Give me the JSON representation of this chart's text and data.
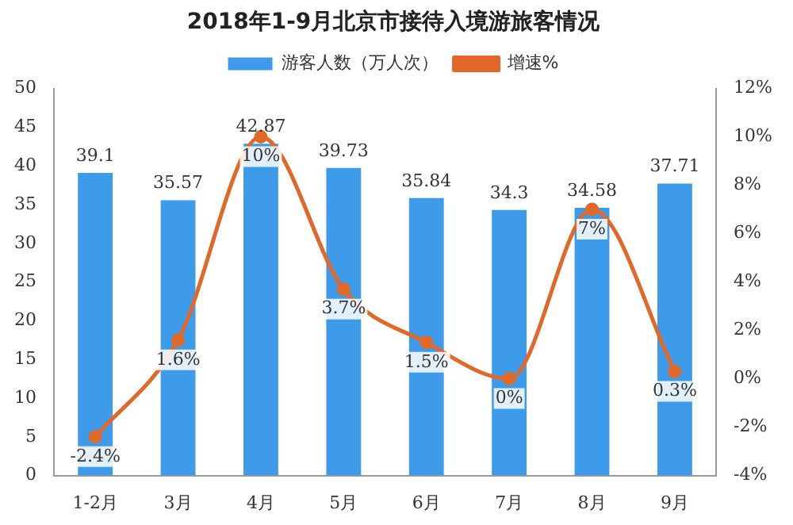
{
  "chart_data": {
    "type": "bar",
    "title": "2018年1-9月北京市接待入境游旅客情况",
    "categories": [
      "1-2月",
      "3月",
      "4月",
      "5月",
      "6月",
      "7月",
      "8月",
      "9月"
    ],
    "series": [
      {
        "name": "游客人数（万人次）",
        "color": "#3d9be9",
        "values": [
          39.1,
          35.57,
          42.87,
          39.73,
          35.84,
          34.3,
          34.58,
          37.71
        ],
        "value_labels": [
          "39.1",
          "35.57",
          "42.87",
          "39.73",
          "35.84",
          "34.3",
          "34.58",
          "37.71"
        ]
      },
      {
        "name": "增速%",
        "type": "line",
        "axis": "y2",
        "color": "#e0692a",
        "marker": "circle",
        "values": [
          -2.4,
          1.6,
          10,
          3.7,
          1.5,
          0,
          7,
          0.3
        ],
        "value_labels": [
          "-2.4%",
          "1.6%",
          "10%",
          "3.7%",
          "1.5%",
          "0%",
          "7%",
          "0.3%"
        ]
      }
    ],
    "ylim": [
      0,
      50
    ],
    "yticks": [
      0,
      5,
      10,
      15,
      20,
      25,
      30,
      35,
      40,
      45,
      50
    ],
    "y2lim": [
      -4,
      12
    ],
    "y2ticks": [
      {
        "value": -4,
        "label": "-4%"
      },
      {
        "value": -2,
        "label": "-2%"
      },
      {
        "value": 0,
        "label": "0%"
      },
      {
        "value": 2,
        "label": "2%"
      },
      {
        "value": 4,
        "label": "4%"
      },
      {
        "value": 6,
        "label": "6%"
      },
      {
        "value": 8,
        "label": "8%"
      },
      {
        "value": 10,
        "label": "10%"
      },
      {
        "value": 12,
        "label": "12%"
      }
    ],
    "legend": "top",
    "grid": false
  }
}
